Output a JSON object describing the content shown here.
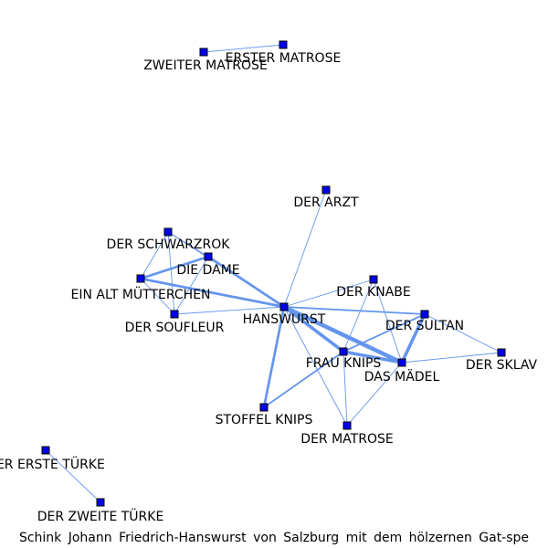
{
  "colors": {
    "edge": "#6495ED",
    "node_fill": "#0000EE",
    "node_stroke": "#000000",
    "label": "#000000",
    "background": "#FFFFFF"
  },
  "graph": {
    "nodes": [
      {
        "id": "zweiter-matrose",
        "label": "ZWEITER MATROSE"
      },
      {
        "id": "erster-matrose",
        "label": "ERSTER MATROSE"
      },
      {
        "id": "der-arzt",
        "label": "DER ARZT"
      },
      {
        "id": "der-schwarzrok",
        "label": "DER SCHWARZROK"
      },
      {
        "id": "die-dame",
        "label": "DIE DAME"
      },
      {
        "id": "ein-alt-muetterchen",
        "label": "EIN ALT MÜTTERCHEN"
      },
      {
        "id": "der-soufleur",
        "label": "DER SOUFLEUR"
      },
      {
        "id": "hanswurst",
        "label": "HANSWURST"
      },
      {
        "id": "der-knabe",
        "label": "DER KNABE"
      },
      {
        "id": "der-sultan",
        "label": "DER SULTAN"
      },
      {
        "id": "frau-knips",
        "label": "FRAU KNIPS"
      },
      {
        "id": "das-maedel",
        "label": "DAS MÄDEL"
      },
      {
        "id": "der-sklav",
        "label": "DER SKLAV"
      },
      {
        "id": "stoffel-knips",
        "label": "STOFFEL KNIPS"
      },
      {
        "id": "der-matrose",
        "label": "DER MATROSE"
      },
      {
        "id": "der-erste-tuerke",
        "label": "DER ERSTE TÜRKE"
      },
      {
        "id": "der-zweite-tuerke",
        "label": "DER ZWEITE TÜRKE"
      }
    ],
    "edges": [
      {
        "source": "zweiter-matrose",
        "target": "erster-matrose",
        "weight": 1
      },
      {
        "source": "der-erste-tuerke",
        "target": "der-zweite-tuerke",
        "weight": 1
      },
      {
        "source": "der-arzt",
        "target": "hanswurst",
        "weight": 1
      },
      {
        "source": "der-schwarzrok",
        "target": "die-dame",
        "weight": 1
      },
      {
        "source": "der-schwarzrok",
        "target": "ein-alt-muetterchen",
        "weight": 1
      },
      {
        "source": "der-schwarzrok",
        "target": "der-soufleur",
        "weight": 1
      },
      {
        "source": "der-schwarzrok",
        "target": "hanswurst",
        "weight": 1
      },
      {
        "source": "die-dame",
        "target": "ein-alt-muetterchen",
        "weight": 3
      },
      {
        "source": "die-dame",
        "target": "der-soufleur",
        "weight": 1
      },
      {
        "source": "die-dame",
        "target": "hanswurst",
        "weight": 3
      },
      {
        "source": "ein-alt-muetterchen",
        "target": "der-soufleur",
        "weight": 1
      },
      {
        "source": "ein-alt-muetterchen",
        "target": "hanswurst",
        "weight": 3
      },
      {
        "source": "der-soufleur",
        "target": "hanswurst",
        "weight": 1
      },
      {
        "source": "hanswurst",
        "target": "der-knabe",
        "weight": 1
      },
      {
        "source": "hanswurst",
        "target": "der-sultan",
        "weight": 2
      },
      {
        "source": "hanswurst",
        "target": "frau-knips",
        "weight": 4
      },
      {
        "source": "hanswurst",
        "target": "das-maedel",
        "weight": 5
      },
      {
        "source": "hanswurst",
        "target": "stoffel-knips",
        "weight": 3
      },
      {
        "source": "hanswurst",
        "target": "der-matrose",
        "weight": 1
      },
      {
        "source": "der-knabe",
        "target": "frau-knips",
        "weight": 1
      },
      {
        "source": "der-knabe",
        "target": "das-maedel",
        "weight": 1
      },
      {
        "source": "der-sultan",
        "target": "frau-knips",
        "weight": 2
      },
      {
        "source": "der-sultan",
        "target": "das-maedel",
        "weight": 4
      },
      {
        "source": "der-sultan",
        "target": "der-sklav",
        "weight": 1
      },
      {
        "source": "frau-knips",
        "target": "das-maedel",
        "weight": 4
      },
      {
        "source": "frau-knips",
        "target": "stoffel-knips",
        "weight": 2
      },
      {
        "source": "frau-knips",
        "target": "der-matrose",
        "weight": 1
      },
      {
        "source": "das-maedel",
        "target": "der-sklav",
        "weight": 1
      },
      {
        "source": "das-maedel",
        "target": "der-matrose",
        "weight": 1
      }
    ]
  },
  "footer": {
    "caption": "Schink Johann Friedrich-Hanswurst von Salzburg mit dem hölzernen Gat-spe"
  }
}
